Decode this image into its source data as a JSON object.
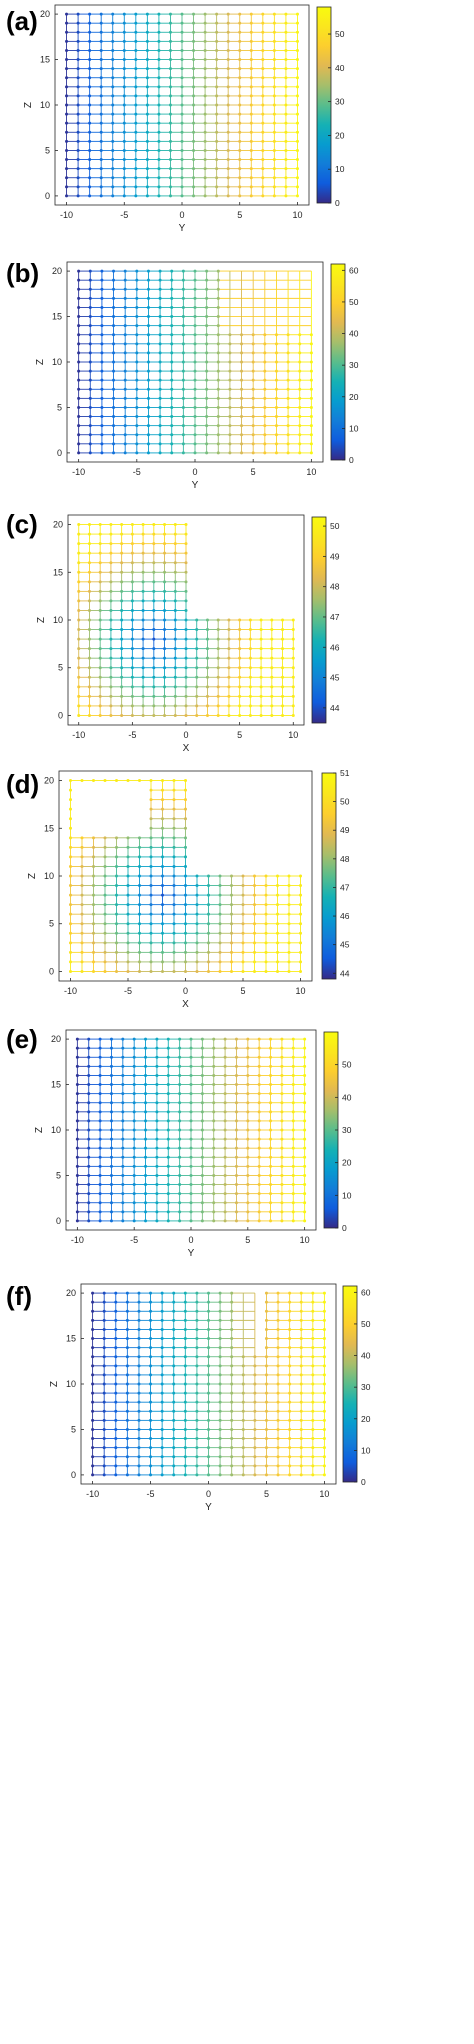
{
  "chart_data": [
    {
      "type": "scatter",
      "panel_label": "(a)",
      "xlabel": "Y",
      "ylabel": "Z",
      "xlim": [
        -11,
        11
      ],
      "ylim": [
        -1,
        21
      ],
      "xticks": [
        -10,
        -5,
        0,
        5,
        10
      ],
      "yticks": [
        0,
        5,
        10,
        15,
        20
      ],
      "grid_x": [
        -10,
        10
      ],
      "grid_z": [
        0,
        20
      ],
      "holes": [],
      "colormap": "parula",
      "color_range": [
        0,
        58
      ],
      "colorbar_ticks": [
        0,
        10,
        20,
        30,
        40,
        50
      ],
      "color_model": "x"
    },
    {
      "type": "scatter",
      "panel_label": "(b)",
      "xlabel": "Y",
      "ylabel": "Z",
      "xlim": [
        -11,
        11
      ],
      "ylim": [
        -1,
        21
      ],
      "xticks": [
        -10,
        -5,
        0,
        5,
        10
      ],
      "yticks": [
        0,
        5,
        10,
        15,
        20
      ],
      "grid_x": [
        -10,
        10
      ],
      "grid_z": [
        0,
        20
      ],
      "holes": [
        {
          "x": [
            3,
            10
          ],
          "z": [
            14,
            20
          ],
          "keep_grid_lines": true
        }
      ],
      "colormap": "parula",
      "color_range": [
        0,
        62
      ],
      "colorbar_ticks": [
        0,
        10,
        20,
        30,
        40,
        50,
        60
      ],
      "color_model": "x"
    },
    {
      "type": "scatter",
      "panel_label": "(c)",
      "xlabel": "X",
      "ylabel": "Z",
      "xlim": [
        -11,
        11
      ],
      "ylim": [
        -1,
        21
      ],
      "xticks": [
        -10,
        -5,
        0,
        5,
        10
      ],
      "yticks": [
        0,
        5,
        10,
        15,
        20
      ],
      "grid_x": [
        -10,
        10
      ],
      "grid_z": [
        0,
        20
      ],
      "holes": [
        {
          "x": [
            1,
            10
          ],
          "z": [
            11,
            20
          ]
        }
      ],
      "colormap": "parula",
      "color_range": [
        43.5,
        50.3
      ],
      "colorbar_ticks": [
        44,
        45,
        46,
        47,
        48,
        49,
        50
      ],
      "color_model": "edge",
      "color_center": [
        -3,
        8
      ]
    },
    {
      "type": "scatter",
      "panel_label": "(d)",
      "xlabel": "X",
      "ylabel": "Z",
      "xlim": [
        -11,
        11
      ],
      "ylim": [
        -1,
        21
      ],
      "xticks": [
        -10,
        -5,
        0,
        5,
        10
      ],
      "yticks": [
        0,
        5,
        10,
        15,
        20
      ],
      "grid_x": [
        -10,
        10
      ],
      "grid_z": [
        0,
        20
      ],
      "holes": [
        {
          "x": [
            1,
            10
          ],
          "z": [
            11,
            20
          ]
        },
        {
          "x": [
            -9,
            -4
          ],
          "z": [
            15,
            19
          ]
        }
      ],
      "colormap": "parula",
      "color_range": [
        43.8,
        51.0
      ],
      "colorbar_ticks": [
        44,
        45,
        46,
        47,
        48,
        49,
        50,
        51
      ],
      "color_model": "edge",
      "color_center": [
        -2,
        8
      ]
    },
    {
      "type": "scatter",
      "panel_label": "(e)",
      "xlabel": "Y",
      "ylabel": "Z",
      "xlim": [
        -11,
        11
      ],
      "ylim": [
        -1,
        21
      ],
      "xticks": [
        -10,
        -5,
        0,
        5,
        10
      ],
      "yticks": [
        0,
        5,
        10,
        15,
        20
      ],
      "grid_x": [
        -10,
        10
      ],
      "grid_z": [
        0,
        20
      ],
      "holes": [],
      "colormap": "parula",
      "color_range": [
        0,
        60
      ],
      "colorbar_ticks": [
        0,
        10,
        20,
        30,
        40,
        50
      ],
      "color_model": "x"
    },
    {
      "type": "scatter",
      "panel_label": "(f)",
      "xlabel": "Y",
      "ylabel": "Z",
      "xlim": [
        -11,
        11
      ],
      "ylim": [
        -1,
        21
      ],
      "xticks": [
        -10,
        -5,
        0,
        5,
        10
      ],
      "yticks": [
        0,
        5,
        10,
        15,
        20
      ],
      "grid_x": [
        -10,
        10
      ],
      "grid_z": [
        0,
        20
      ],
      "holes": [
        {
          "x": [
            3,
            4
          ],
          "z": [
            14,
            20
          ],
          "keep_grid_lines": true
        }
      ],
      "colormap": "parula",
      "color_range": [
        0,
        62
      ],
      "colorbar_ticks": [
        0,
        10,
        20,
        30,
        40,
        50,
        60
      ],
      "color_model": "x"
    }
  ]
}
